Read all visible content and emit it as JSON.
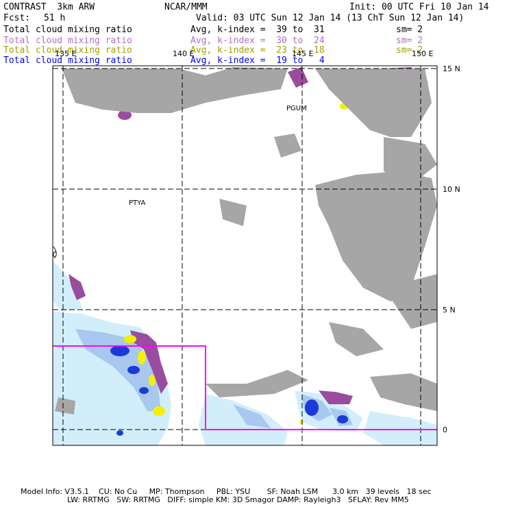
{
  "header": {
    "model": "CONTRAST  3km ARW",
    "center": "NCAR/MMM",
    "init": "Init: 00 UTC Fri 10 Jan 14",
    "fcst_label": "Fcst:",
    "fcst_value": "51 h",
    "valid": "Valid: 03 UTC Sun 12 Jan 14 (13 ChT Sun 12 Jan 14)"
  },
  "legend": [
    {
      "field": "Total cloud mixing ratio",
      "range": "Avg, k-index =  39 to  31",
      "sm": "sm= 2",
      "color": "#000000"
    },
    {
      "field": "Total cloud mixing ratio",
      "range": "Avg, k-index =  30 to  24",
      "sm": "sm= 2",
      "color": "#b070c0"
    },
    {
      "field": "Total cloud mixing ratio",
      "range": "Avg, k-index =  23 to  18",
      "sm": "sm= 2",
      "color": "#a0a000"
    },
    {
      "field": "Total cloud mixing ratio",
      "range": "Avg, k-index =  19 to   4",
      "sm": "",
      "color": "#0000ff"
    }
  ],
  "map": {
    "lon_labels": [
      "135 E",
      "140 E",
      "145 E",
      "150 E"
    ],
    "lat_labels": [
      "15 N",
      "10 N",
      "5 N",
      "0"
    ],
    "stations": [
      "PGUM",
      "PTYA"
    ],
    "colors": {
      "gray": "#a6a6a6",
      "purple": "#9a4c9e",
      "yellow": "#f4f000",
      "light_blue": "#d2eefb",
      "mid_blue": "#a8c8f0",
      "dark_blue": "#1b3bd8",
      "box": "#ff00ff"
    }
  },
  "footer": {
    "line1": "Model Info: V3.5.1    CU: No Cu     MP: Thompson     PBL: YSU       SF: Noah LSM      3.0 km   39 levels   18 sec",
    "line2": "LW: RRTMG   SW: RRTMG   DIFF: simple KM: 3D Smagor DAMP: Rayleigh3   SFLAY: Rev MM5"
  }
}
